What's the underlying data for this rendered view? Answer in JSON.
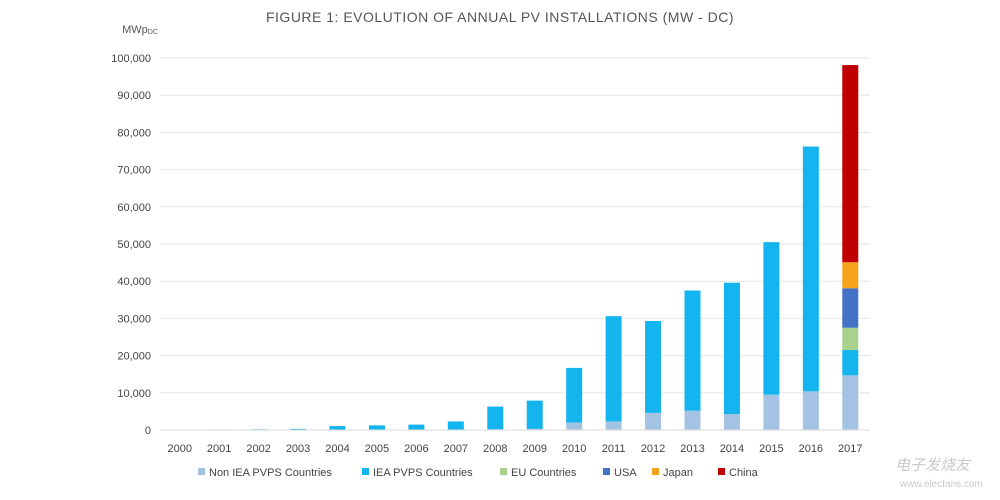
{
  "chart_data": {
    "type": "bar",
    "stacked": true,
    "title": "FIGURE 1: EVOLUTION OF ANNUAL PV INSTALLATIONS (MW - DC)",
    "ylabel": "MWp",
    "ylabel_sub": "DC",
    "ylim": [
      0,
      100000
    ],
    "yticks": [
      "0",
      "10,000",
      "20,000",
      "30,000",
      "40,000",
      "50,000",
      "60,000",
      "70,000",
      "80,000",
      "90,000",
      "100,000"
    ],
    "grid": true,
    "legend_position": "bottom",
    "categories": [
      "2000",
      "2001",
      "2002",
      "2003",
      "2004",
      "2005",
      "2006",
      "2007",
      "2008",
      "2009",
      "2010",
      "2011",
      "2012",
      "2013",
      "2014",
      "2015",
      "2016",
      "2017"
    ],
    "series": [
      {
        "name": "Non IEA PVPS Countries",
        "color": "#a4c2e2",
        "values": [
          0,
          0,
          0,
          0,
          50,
          50,
          50,
          100,
          200,
          300,
          2000,
          2300,
          4600,
          5200,
          4300,
          9500,
          10400,
          14700
        ]
      },
      {
        "name": "IEA PVPS Countries",
        "color": "#14b4ef",
        "values": [
          100,
          150,
          200,
          300,
          1000,
          1200,
          1400,
          2200,
          6100,
          7600,
          14700,
          28300,
          24700,
          32300,
          35300,
          41000,
          65800,
          6800
        ]
      },
      {
        "name": "EU Countries",
        "color": "#a9d18e",
        "values": [
          0,
          0,
          0,
          0,
          0,
          0,
          0,
          0,
          0,
          0,
          0,
          0,
          0,
          0,
          0,
          0,
          0,
          6000
        ]
      },
      {
        "name": "USA",
        "color": "#4472c4",
        "values": [
          0,
          0,
          0,
          0,
          0,
          0,
          0,
          0,
          0,
          0,
          0,
          0,
          0,
          0,
          0,
          0,
          0,
          10600
        ]
      },
      {
        "name": "Japan",
        "color": "#f5a31a",
        "values": [
          0,
          0,
          0,
          0,
          0,
          0,
          0,
          0,
          0,
          0,
          0,
          0,
          0,
          0,
          0,
          0,
          0,
          7000
        ]
      },
      {
        "name": "China",
        "color": "#c00000",
        "values": [
          0,
          0,
          0,
          0,
          0,
          0,
          0,
          0,
          0,
          0,
          0,
          0,
          0,
          0,
          0,
          0,
          0,
          53000
        ]
      }
    ]
  },
  "watermark": {
    "text": "电子发烧友",
    "url": "www.elecfans.com"
  }
}
